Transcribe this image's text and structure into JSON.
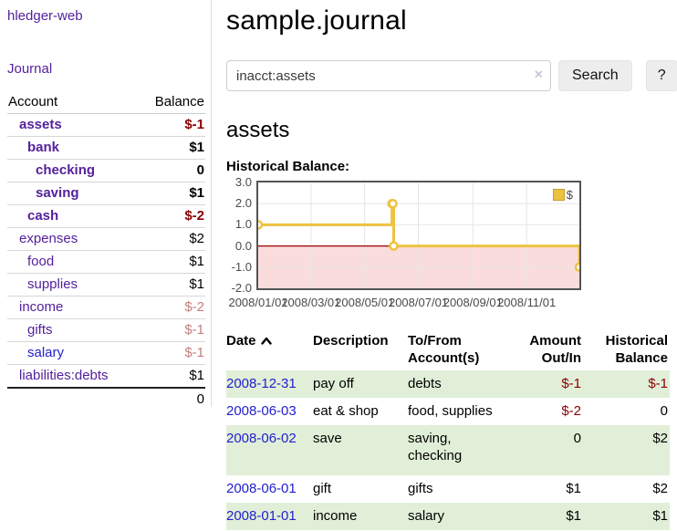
{
  "sidebar": {
    "brand": "hledger-web",
    "nav_journal": "Journal",
    "accounts_table": {
      "col_account": "Account",
      "col_balance": "Balance",
      "rows": [
        {
          "name": "assets",
          "depth": 0,
          "balance": "$-1",
          "bold": true,
          "balance_style": "neg-strong",
          "link": "purple"
        },
        {
          "name": "bank",
          "depth": 1,
          "balance": "$1",
          "bold": true,
          "balance_style": "plain",
          "link": "purple"
        },
        {
          "name": "checking",
          "depth": 2,
          "balance": "0",
          "bold": true,
          "balance_style": "plain",
          "link": "purple"
        },
        {
          "name": "saving",
          "depth": 2,
          "balance": "$1",
          "bold": true,
          "balance_style": "plain",
          "link": "purple"
        },
        {
          "name": "cash",
          "depth": 1,
          "balance": "$-2",
          "bold": true,
          "balance_style": "neg-strong",
          "link": "purple"
        },
        {
          "name": "expenses",
          "depth": 0,
          "balance": "$2",
          "bold": false,
          "balance_style": "plain",
          "link": "purple"
        },
        {
          "name": "food",
          "depth": 1,
          "balance": "$1",
          "bold": false,
          "balance_style": "plain",
          "link": "purple"
        },
        {
          "name": "supplies",
          "depth": 1,
          "balance": "$1",
          "bold": false,
          "balance_style": "plain",
          "link": "purple"
        },
        {
          "name": "income",
          "depth": 0,
          "balance": "$-2",
          "bold": false,
          "balance_style": "neg-muted",
          "link": "purple"
        },
        {
          "name": "gifts",
          "depth": 1,
          "balance": "$-1",
          "bold": false,
          "balance_style": "neg-muted",
          "link": "purple"
        },
        {
          "name": "salary",
          "depth": 1,
          "balance": "$-1",
          "bold": false,
          "balance_style": "neg-muted",
          "link": "blue"
        },
        {
          "name": "liabilities:debts",
          "depth": 0,
          "balance": "$1",
          "bold": false,
          "balance_style": "plain",
          "link": "purple"
        }
      ],
      "total": "0"
    }
  },
  "header": {
    "title": "sample.journal",
    "search": {
      "value": "inacct:assets",
      "clear_icon": "×",
      "button_label": "Search",
      "help_label": "?"
    }
  },
  "main": {
    "account_heading": "assets",
    "chart_label": "Historical Balance:"
  },
  "chart_data": {
    "type": "line",
    "step": true,
    "title": "Historical Balance:",
    "series": [
      {
        "name": "$",
        "color": "#edc240",
        "points": [
          {
            "date": "2008-01-01",
            "value": 1
          },
          {
            "date": "2008-06-01",
            "value": 2
          },
          {
            "date": "2008-06-02",
            "value": 2
          },
          {
            "date": "2008-06-03",
            "value": 0
          },
          {
            "date": "2008-12-31",
            "value": -1
          }
        ]
      }
    ],
    "x_range": [
      "2008-01-01",
      "2008-12-31"
    ],
    "x_tick_labels": [
      "2008/01/01",
      "2008/03/01",
      "2008/05/01",
      "2008/07/01",
      "2008/09/01",
      "2008/11/01"
    ],
    "x_tick_dates": [
      "2008-01-01",
      "2008-03-01",
      "2008-05-01",
      "2008-07-01",
      "2008-09-01",
      "2008-11-01"
    ],
    "y_ticks": [
      "3.0",
      "2.0",
      "1.0",
      "0.0",
      "-1.0",
      "-2.0"
    ],
    "ylim": [
      -2,
      3
    ],
    "grid": true,
    "grid_color": "#e6e6e6",
    "negative_region_color": "#fbdcdc",
    "zero_line_color": "#990000",
    "legend_position": "top-right",
    "legend_label": "$"
  },
  "register": {
    "columns": [
      {
        "label": "Date",
        "align": "left",
        "sorted": "asc"
      },
      {
        "label": "Description",
        "align": "left"
      },
      {
        "label": "To/From Account(s)",
        "align": "left"
      },
      {
        "label": "Amount Out/In",
        "align": "right"
      },
      {
        "label": "Historical Balance",
        "align": "right"
      }
    ],
    "rows": [
      {
        "date": "2008-12-31",
        "description": "pay off",
        "accounts": "debts",
        "amount": "$-1",
        "amount_negative": true,
        "balance": "$-1",
        "balance_negative": true,
        "highlight": true,
        "tall": false
      },
      {
        "date": "2008-06-03",
        "description": "eat & shop",
        "accounts": "food, supplies",
        "amount": "$-2",
        "amount_negative": true,
        "balance": "0",
        "balance_negative": false,
        "highlight": false,
        "tall": false
      },
      {
        "date": "2008-06-02",
        "description": "save",
        "accounts": "saving, checking",
        "amount": "0",
        "amount_negative": false,
        "balance": "$2",
        "balance_negative": false,
        "highlight": true,
        "tall": true
      },
      {
        "date": "2008-06-01",
        "description": "gift",
        "accounts": "gifts",
        "amount": "$1",
        "amount_negative": false,
        "balance": "$2",
        "balance_negative": false,
        "highlight": false,
        "tall": false
      },
      {
        "date": "2008-01-01",
        "description": "income",
        "accounts": "salary",
        "amount": "$1",
        "amount_negative": false,
        "balance": "$1",
        "balance_negative": false,
        "highlight": true,
        "tall": false
      }
    ]
  },
  "colors": {
    "accent_purple": "#54219c",
    "link_blue": "#2220cf",
    "negative_strong": "#8b0000",
    "negative_muted": "#c38080",
    "row_highlight": "#e1efd8",
    "chart_line": "#edc240",
    "chart_border": "#545454"
  }
}
